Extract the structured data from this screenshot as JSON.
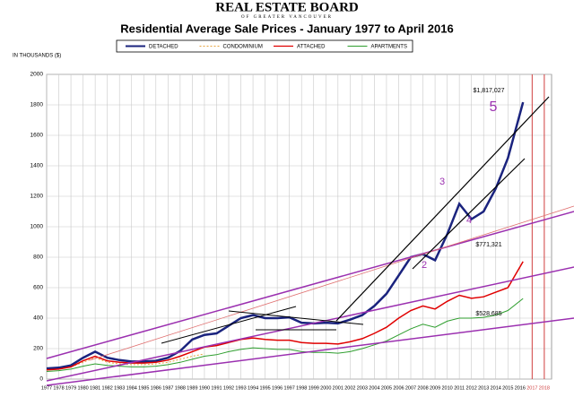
{
  "header": {
    "logo": "REAL ESTATE BOARD",
    "logo_sub": "OF GREATER VANCOUVER"
  },
  "chart_data": {
    "type": "line",
    "title": "Residential Average Sale Prices  -  January 1977 to April 2016",
    "y_label": "IN THOUSANDS ($)",
    "x": [
      1977,
      1978,
      1979,
      1980,
      1981,
      1982,
      1983,
      1984,
      1985,
      1986,
      1987,
      1988,
      1989,
      1990,
      1991,
      1992,
      1993,
      1994,
      1995,
      1996,
      1997,
      1998,
      1999,
      2000,
      2001,
      2002,
      2003,
      2004,
      2005,
      2006,
      2007,
      2008,
      2009,
      2010,
      2011,
      2012,
      2013,
      2014,
      2015,
      2016.25
    ],
    "series": [
      {
        "name": "DETACHED",
        "color": "#1a237e",
        "width": 2.5,
        "values": [
          70,
          75,
          90,
          140,
          180,
          140,
          125,
          115,
          115,
          120,
          140,
          185,
          260,
          290,
          300,
          350,
          400,
          420,
          400,
          400,
          405,
          370,
          365,
          370,
          365,
          390,
          420,
          480,
          560,
          680,
          800,
          820,
          780,
          950,
          1150,
          1050,
          1100,
          1250,
          1450,
          1817
        ]
      },
      {
        "name": "CONDOMINIUM",
        "color": "#e6a23c",
        "width": 1,
        "dashed": true,
        "values": [
          60,
          65,
          80,
          110,
          140,
          110,
          100,
          95,
          95,
          100,
          110,
          130,
          150,
          165,
          null,
          null,
          null,
          null,
          null,
          null,
          null,
          null,
          null,
          null,
          null,
          null,
          null,
          null,
          null,
          null,
          null,
          null,
          null,
          null,
          null,
          null,
          null,
          null,
          null,
          null
        ]
      },
      {
        "name": "ATTACHED",
        "color": "#e00000",
        "width": 1.5,
        "values": [
          60,
          65,
          80,
          120,
          150,
          120,
          110,
          105,
          105,
          110,
          125,
          150,
          180,
          210,
          220,
          240,
          260,
          270,
          260,
          255,
          255,
          240,
          235,
          235,
          230,
          245,
          265,
          300,
          340,
          400,
          450,
          480,
          460,
          510,
          550,
          530,
          540,
          570,
          600,
          771
        ]
      },
      {
        "name": "APARTMENTS",
        "color": "#2e9e2e",
        "width": 1,
        "values": [
          50,
          55,
          65,
          85,
          100,
          90,
          85,
          80,
          80,
          85,
          95,
          110,
          130,
          150,
          160,
          180,
          195,
          205,
          200,
          195,
          195,
          180,
          175,
          175,
          170,
          180,
          200,
          225,
          250,
          290,
          330,
          360,
          340,
          380,
          400,
          400,
          405,
          420,
          450,
          529
        ]
      }
    ],
    "xlim": [
      1977,
      2018.6
    ],
    "xticks": [
      1977,
      1978,
      1979,
      1980,
      1981,
      1982,
      1983,
      1984,
      1985,
      1986,
      1987,
      1988,
      1989,
      1990,
      1991,
      1992,
      1993,
      1994,
      1995,
      1996,
      1997,
      1998,
      1999,
      2000,
      2001,
      2002,
      2003,
      2004,
      2005,
      2006,
      2007,
      2008,
      2009,
      2010,
      2011,
      2012,
      2013,
      2014,
      2015,
      2016,
      2017,
      2018
    ],
    "future_ticks_from": 2017,
    "future_color": "#d04040",
    "ylim": [
      0,
      2000
    ],
    "yticks": [
      0,
      200,
      400,
      600,
      800,
      1000,
      1200,
      1400,
      1600,
      1800,
      2000
    ],
    "grid": true,
    "annotations": [
      "$1,817,027",
      "$771,321",
      "$528,685",
      "5",
      "3",
      "4",
      "2"
    ]
  }
}
